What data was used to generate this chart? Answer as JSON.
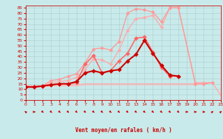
{
  "title": "",
  "xlabel": "Vent moyen/en rafales ( km/h )",
  "background_color": "#c8eaea",
  "grid_color": "#aacccc",
  "x_ticks": [
    0,
    1,
    2,
    3,
    4,
    5,
    6,
    7,
    8,
    9,
    10,
    11,
    12,
    13,
    14,
    15,
    16,
    17,
    18,
    19,
    20,
    21,
    22,
    23
  ],
  "y_ticks": [
    0,
    5,
    10,
    15,
    20,
    25,
    30,
    35,
    40,
    45,
    50,
    55,
    60,
    65,
    70,
    75,
    80,
    85
  ],
  "ylim": [
    0,
    87
  ],
  "xlim": [
    0,
    23
  ],
  "arrow_angles": [
    315,
    90,
    135,
    135,
    135,
    135,
    135,
    135,
    135,
    135,
    135,
    135,
    135,
    135,
    135,
    135,
    135,
    135,
    135,
    90,
    90,
    90,
    45,
    45
  ],
  "series": [
    {
      "name": "line1_lightest",
      "color": "#ffbbbb",
      "linewidth": 0.8,
      "marker": null,
      "markersize": 0,
      "x": [
        0,
        1,
        2,
        3,
        4,
        5,
        6,
        7,
        8,
        9,
        10,
        11,
        12,
        13,
        14,
        15,
        16,
        17,
        18,
        19,
        20,
        21,
        22,
        23
      ],
      "y": [
        12,
        12,
        12,
        13,
        13,
        13,
        13,
        14,
        14,
        14,
        14,
        14,
        14,
        14,
        14,
        14,
        14,
        14,
        14,
        14,
        14,
        15,
        16,
        4
      ]
    },
    {
      "name": "line2_light_flat",
      "color": "#ffaaaa",
      "linewidth": 0.8,
      "marker": null,
      "markersize": 0,
      "x": [
        0,
        1,
        2,
        3,
        4,
        5,
        6,
        7,
        8,
        9,
        10,
        11,
        12,
        13,
        14,
        15,
        16,
        17,
        18,
        19,
        20,
        21,
        22,
        23
      ],
      "y": [
        13,
        13,
        13,
        14,
        14,
        14,
        14,
        15,
        15,
        15,
        15,
        15,
        15,
        15,
        15,
        15,
        15,
        15,
        15,
        15,
        15,
        15,
        16,
        5
      ]
    },
    {
      "name": "line3_light_rising",
      "color": "#ffaaaa",
      "linewidth": 1.0,
      "marker": "D",
      "markersize": 2.5,
      "x": [
        0,
        1,
        2,
        3,
        4,
        5,
        6,
        7,
        8,
        9,
        10,
        11,
        12,
        13,
        14,
        15,
        16,
        17,
        18,
        20,
        21,
        22
      ],
      "y": [
        13,
        13,
        13,
        16,
        17,
        18,
        21,
        28,
        38,
        37,
        33,
        46,
        64,
        75,
        76,
        78,
        67,
        85,
        85,
        16,
        16,
        16
      ]
    },
    {
      "name": "line4_medium_light",
      "color": "#ff9999",
      "linewidth": 1.0,
      "marker": "D",
      "markersize": 2.5,
      "x": [
        0,
        1,
        2,
        3,
        4,
        5,
        6,
        7,
        8,
        9,
        10,
        11,
        12,
        13,
        14,
        15,
        16,
        17,
        18,
        20,
        21,
        22
      ],
      "y": [
        13,
        13,
        13,
        18,
        19,
        22,
        24,
        34,
        47,
        48,
        46,
        54,
        80,
        84,
        83,
        81,
        72,
        85,
        85,
        15,
        15,
        16
      ]
    },
    {
      "name": "line5_medium",
      "color": "#ff6666",
      "linewidth": 1.2,
      "marker": "D",
      "markersize": 3.0,
      "x": [
        0,
        1,
        2,
        3,
        4,
        5,
        6,
        7,
        8,
        9,
        10,
        11,
        12,
        13,
        14,
        15,
        16,
        17,
        18
      ],
      "y": [
        12,
        12,
        13,
        14,
        15,
        15,
        16,
        33,
        41,
        25,
        27,
        36,
        43,
        57,
        58,
        44,
        30,
        22,
        22
      ]
    },
    {
      "name": "line6_dark",
      "color": "#cc0000",
      "linewidth": 1.5,
      "marker": "D",
      "markersize": 3.0,
      "x": [
        0,
        1,
        2,
        3,
        4,
        5,
        6,
        7,
        8,
        9,
        10,
        11,
        12,
        13,
        14,
        15,
        16,
        17,
        18
      ],
      "y": [
        12,
        12,
        13,
        14,
        15,
        15,
        17,
        25,
        27,
        25,
        27,
        28,
        36,
        42,
        55,
        43,
        32,
        23,
        22
      ]
    }
  ]
}
